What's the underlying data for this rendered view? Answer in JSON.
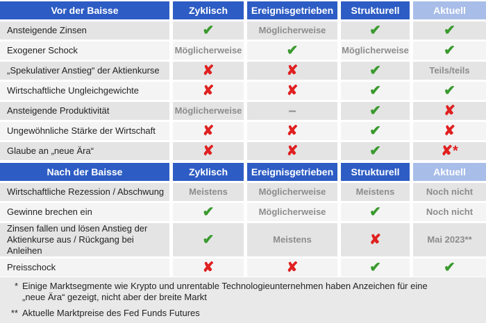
{
  "sections": [
    {
      "header": [
        "Vor der Baisse",
        "Zyklisch",
        "Ereignisgetrieben",
        "Strukturell",
        "Aktuell"
      ],
      "rows": [
        {
          "label": "Ansteigende Zinsen",
          "cells": [
            {
              "text": "✔",
              "color": "#3a9a2e"
            },
            {
              "text": "Möglicherweise",
              "color": "#8c8c8c"
            },
            {
              "text": "✔",
              "color": "#3a9a2e"
            },
            {
              "text": "✔",
              "color": "#3a9a2e"
            }
          ]
        },
        {
          "label": "Exogener Schock",
          "cells": [
            {
              "text": "Möglicherweise",
              "color": "#8c8c8c"
            },
            {
              "text": "✔",
              "color": "#3a9a2e"
            },
            {
              "text": "Möglicherweise",
              "color": "#8c8c8c"
            },
            {
              "text": "✔",
              "color": "#3a9a2e"
            }
          ]
        },
        {
          "label": "„Spekulativer Anstieg“ der Aktienkurse",
          "cells": [
            {
              "text": "✘",
              "color": "#e02020"
            },
            {
              "text": "✘",
              "color": "#e02020"
            },
            {
              "text": "✔",
              "color": "#3a9a2e"
            },
            {
              "text": "Teils/teils",
              "color": "#8c8c8c"
            }
          ]
        },
        {
          "label": "Wirtschaftliche Ungleichgewichte",
          "cells": [
            {
              "text": "✘",
              "color": "#e02020"
            },
            {
              "text": "✘",
              "color": "#e02020"
            },
            {
              "text": "✔",
              "color": "#3a9a2e"
            },
            {
              "text": "✔",
              "color": "#3a9a2e"
            }
          ]
        },
        {
          "label": "Ansteigende Produktivität",
          "cells": [
            {
              "text": "Möglicherweise",
              "color": "#8c8c8c"
            },
            {
              "text": "–",
              "color": "#8c8c8c"
            },
            {
              "text": "✔",
              "color": "#3a9a2e"
            },
            {
              "text": "✘",
              "color": "#e02020"
            }
          ]
        },
        {
          "label": "Ungewöhnliche Stärke der Wirtschaft",
          "cells": [
            {
              "text": "✘",
              "color": "#e02020"
            },
            {
              "text": "✘",
              "color": "#e02020"
            },
            {
              "text": "✔",
              "color": "#3a9a2e"
            },
            {
              "text": "✘",
              "color": "#e02020"
            }
          ]
        },
        {
          "label": "Glaube an „neue Ära“",
          "cells": [
            {
              "text": "✘",
              "color": "#e02020"
            },
            {
              "text": "✘",
              "color": "#e02020"
            },
            {
              "text": "✔",
              "color": "#3a9a2e"
            },
            {
              "text": "✘*",
              "color": "#e02020"
            }
          ]
        }
      ]
    },
    {
      "header": [
        "Nach der Baisse",
        "Zyklisch",
        "Ereignisgetrieben",
        "Strukturell",
        "Aktuell"
      ],
      "rows": [
        {
          "label": "Wirtschaftliche Rezession / Abschwung",
          "cells": [
            {
              "text": "Meistens",
              "color": "#8c8c8c"
            },
            {
              "text": "Möglicherweise",
              "color": "#8c8c8c"
            },
            {
              "text": "Meistens",
              "color": "#8c8c8c"
            },
            {
              "text": "Noch nicht",
              "color": "#8c8c8c"
            }
          ]
        },
        {
          "label": "Gewinne brechen ein",
          "cells": [
            {
              "text": "✔",
              "color": "#3a9a2e"
            },
            {
              "text": "Möglicherweise",
              "color": "#8c8c8c"
            },
            {
              "text": "✔",
              "color": "#3a9a2e"
            },
            {
              "text": "Noch nicht",
              "color": "#8c8c8c"
            }
          ]
        },
        {
          "label": "Zinsen fallen und lösen Anstieg der Aktienkurse aus / Rückgang bei Anleihen",
          "cells": [
            {
              "text": "✔",
              "color": "#3a9a2e"
            },
            {
              "text": "Meistens",
              "color": "#8c8c8c"
            },
            {
              "text": "✘",
              "color": "#e02020"
            },
            {
              "text": "Mai 2023**",
              "color": "#8c8c8c"
            }
          ]
        },
        {
          "label": "Preisschock",
          "cells": [
            {
              "text": "✘",
              "color": "#e02020"
            },
            {
              "text": "✘",
              "color": "#e02020"
            },
            {
              "text": "✔",
              "color": "#3a9a2e"
            },
            {
              "text": "✔",
              "color": "#3a9a2e"
            }
          ]
        }
      ]
    }
  ],
  "footnotes": [
    {
      "mark": "*",
      "text": "Einige Marktsegmente wie Krypto und unrentable Technologieunternehmen haben Anzeichen für eine „neue Ära“ gezeigt, nicht aber der breite Markt"
    },
    {
      "mark": "**",
      "text": "Aktuelle Marktpreise des Fed Funds Futures"
    }
  ]
}
